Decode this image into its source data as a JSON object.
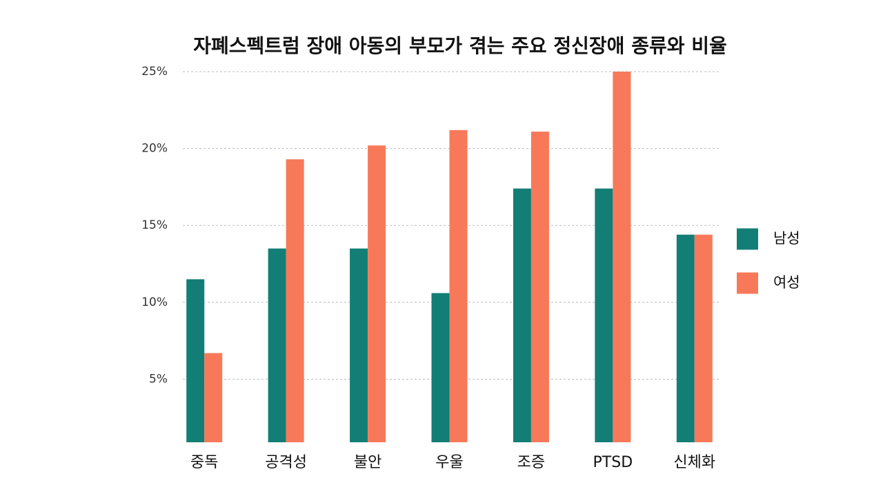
{
  "chart_data": {
    "type": "bar",
    "title": "자폐스펙트럼 장애 아동의 부모가 겪는 주요 정신장애 종류와 비율",
    "categories": [
      "중독",
      "공격성",
      "불안",
      "우울",
      "조증",
      "PTSD",
      "신체화"
    ],
    "series": [
      {
        "name": "남성",
        "color": "#137e76",
        "values": [
          11.5,
          13.5,
          13.5,
          10.6,
          17.4,
          17.4,
          14.4
        ]
      },
      {
        "name": "여성",
        "color": "#f7795a",
        "values": [
          6.7,
          19.3,
          20.2,
          21.2,
          21.1,
          25,
          14.4
        ]
      }
    ],
    "ylim": [
      0.9,
      25
    ],
    "yticks": [
      {
        "value": 5,
        "label": "5%"
      },
      {
        "value": 10,
        "label": "10%"
      },
      {
        "value": 15,
        "label": "15%"
      },
      {
        "value": 20,
        "label": "20%"
      },
      {
        "value": 25,
        "label": "25%"
      }
    ],
    "grid": true,
    "legend": "right"
  }
}
